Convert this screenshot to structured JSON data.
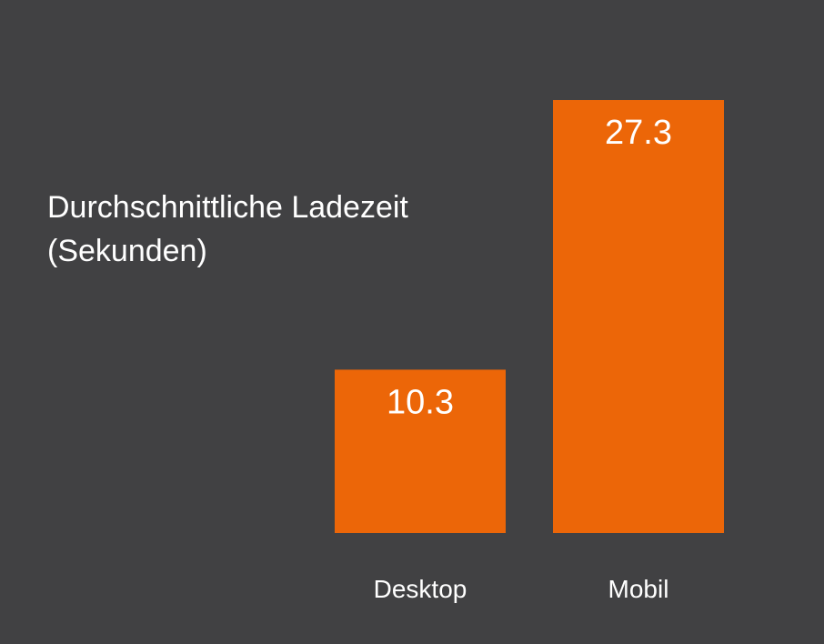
{
  "chart_data": {
    "type": "bar",
    "title_lines": [
      "Durchschnittliche Ladezeit",
      "(Sekunden)"
    ],
    "categories": [
      "Desktop",
      "Mobil"
    ],
    "values": [
      10.3,
      27.3
    ],
    "value_labels": [
      "10.3",
      "27.3"
    ],
    "ylim": [
      0,
      27.3
    ],
    "grid": false,
    "legend": "none",
    "bar_color": "#EC6608",
    "background_color": "#414143",
    "text_color": "#FFFFFF"
  }
}
